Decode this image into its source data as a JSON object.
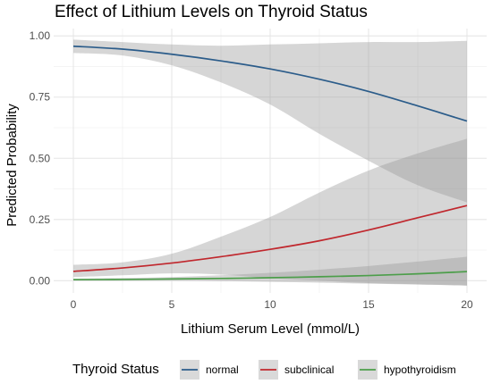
{
  "chart_data": {
    "type": "line",
    "title": "Effect of Lithium Levels on Thyroid Status",
    "xlabel": "Lithium Serum Level (mmol/L)",
    "ylabel": "Predicted Probability",
    "xlim": [
      -1,
      21
    ],
    "ylim": [
      -0.05,
      1.03
    ],
    "x_ticks": [
      0,
      5,
      10,
      15,
      20
    ],
    "x_tick_labels": [
      "0",
      "5",
      "10",
      "15",
      "20"
    ],
    "y_ticks": [
      0,
      0.25,
      0.5,
      0.75,
      1.0
    ],
    "y_tick_labels": [
      "0.00",
      "0.25",
      "0.50",
      "0.75",
      "1.00"
    ],
    "grid": true,
    "legend": {
      "title": "Thyroid Status",
      "position": "bottom"
    },
    "x": [
      0,
      2.5,
      5,
      7.5,
      10,
      12.5,
      15,
      17.5,
      20
    ],
    "series": [
      {
        "name": "normal",
        "color": "#2b5c8a",
        "values": [
          0.958,
          0.946,
          0.925,
          0.898,
          0.865,
          0.823,
          0.773,
          0.714,
          0.652
        ],
        "lower": [
          0.93,
          0.92,
          0.88,
          0.81,
          0.72,
          0.6,
          0.49,
          0.39,
          0.32
        ],
        "upper": [
          0.985,
          0.975,
          0.965,
          0.96,
          0.965,
          0.97,
          0.975,
          0.975,
          0.98
        ]
      },
      {
        "name": "subclinical",
        "color": "#c0272d",
        "values": [
          0.038,
          0.052,
          0.072,
          0.098,
          0.128,
          0.163,
          0.207,
          0.257,
          0.307
        ],
        "lower": [
          0.015,
          0.022,
          0.03,
          0.025,
          0.01,
          0.0,
          -0.01,
          -0.015,
          -0.02
        ],
        "upper": [
          0.065,
          0.075,
          0.11,
          0.18,
          0.26,
          0.36,
          0.45,
          0.52,
          0.58
        ]
      },
      {
        "name": "hypothyroidism",
        "color": "#4c9e4a",
        "values": [
          0.004,
          0.005,
          0.007,
          0.009,
          0.012,
          0.016,
          0.021,
          0.028,
          0.037
        ],
        "lower": [
          0.0,
          0.0,
          0.0,
          -0.002,
          -0.005,
          -0.008,
          -0.012,
          -0.016,
          -0.02
        ],
        "upper": [
          0.008,
          0.011,
          0.015,
          0.022,
          0.032,
          0.045,
          0.06,
          0.078,
          0.098
        ]
      }
    ]
  }
}
